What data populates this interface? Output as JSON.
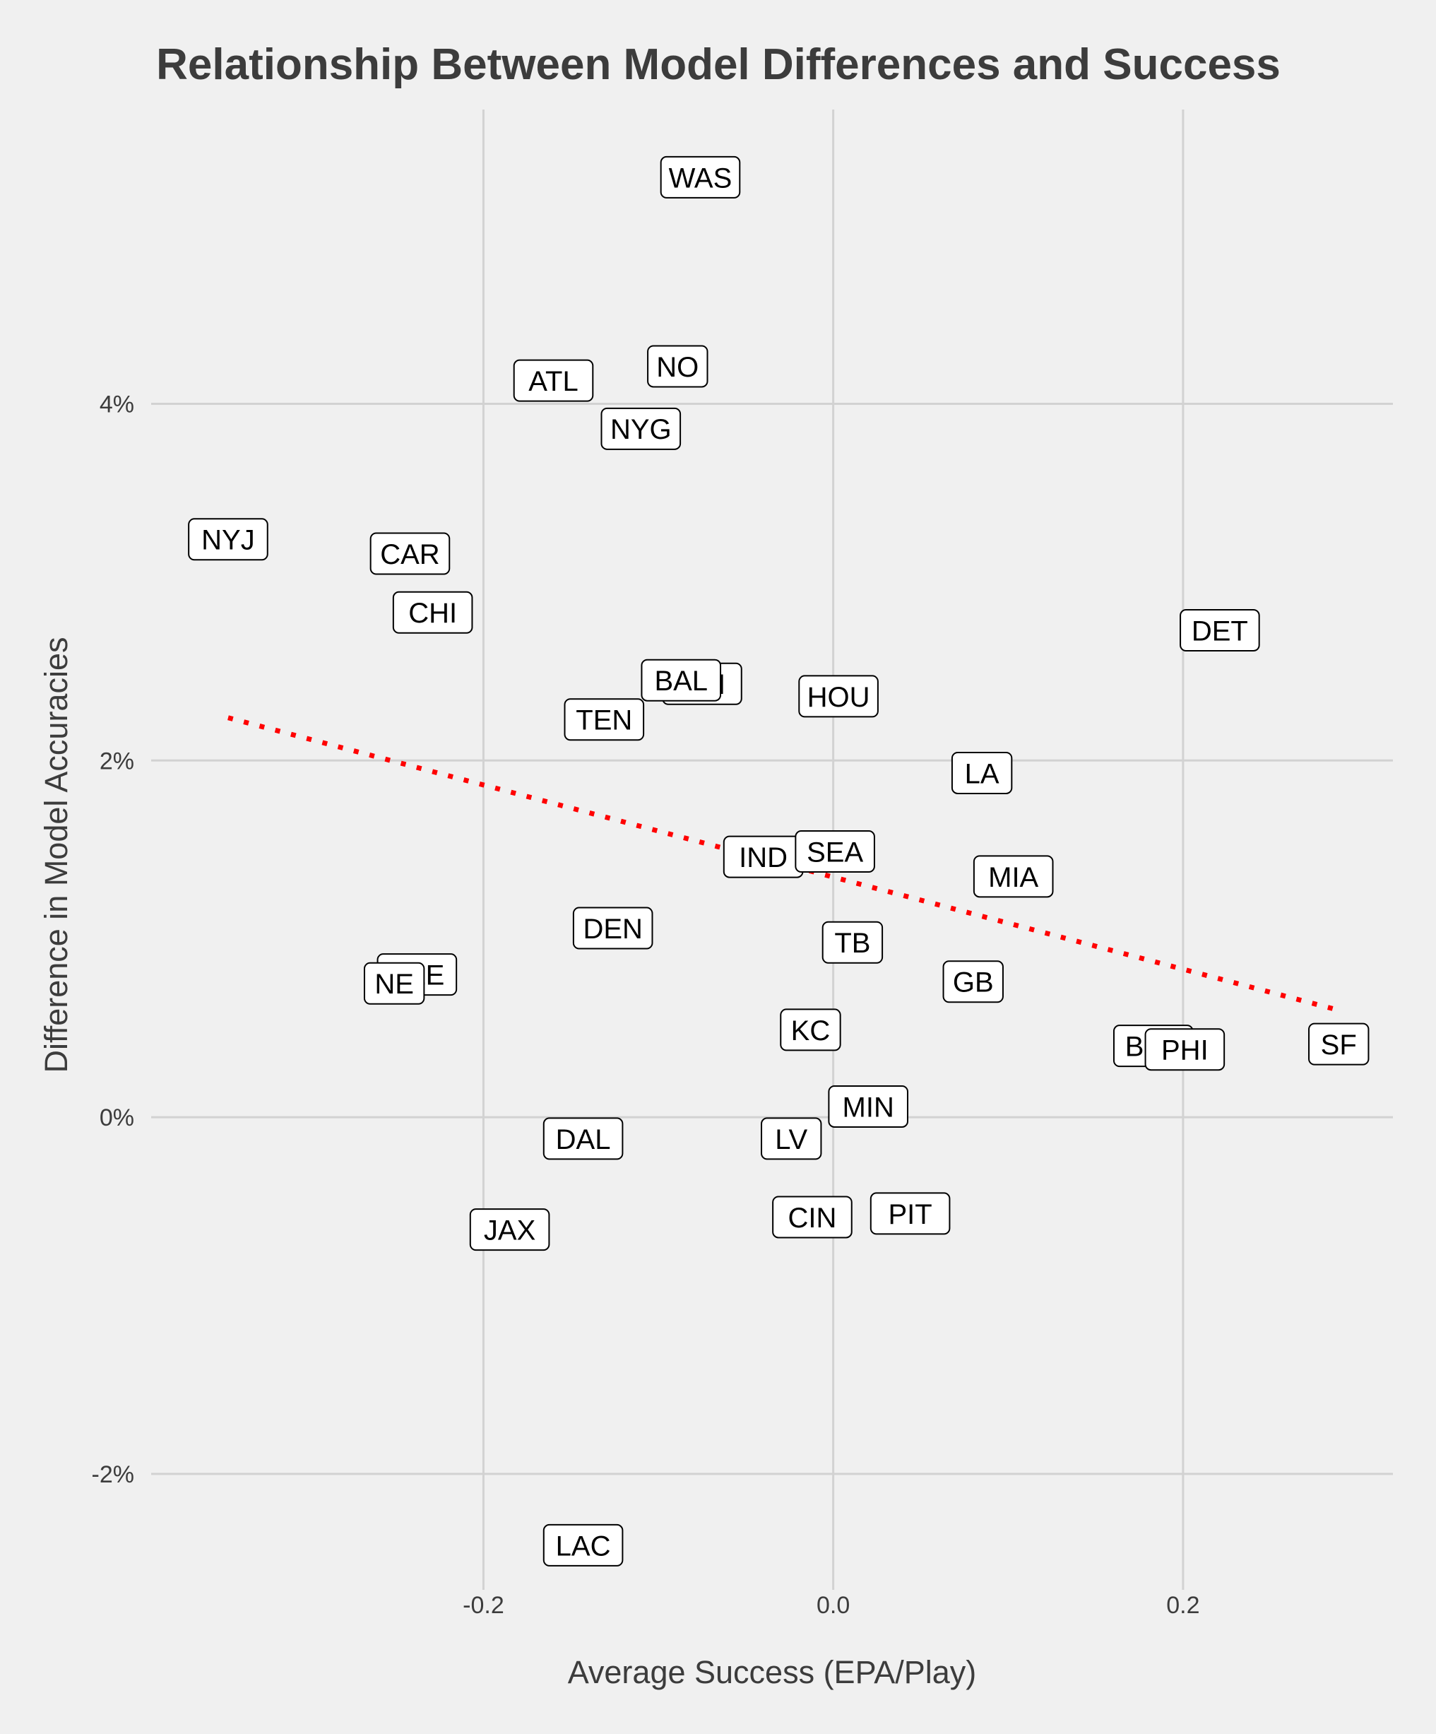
{
  "chart_data": {
    "type": "scatter",
    "title": "Relationship Between Model Differences and Success",
    "xlabel": "Average Success (EPA/Play)",
    "ylabel": "Difference in Model Accuracies",
    "xlim": [
      -0.39,
      0.32
    ],
    "ylim": [
      -2.65,
      5.65
    ],
    "x_ticks": [
      {
        "value": -0.2,
        "label": "-0.2"
      },
      {
        "value": 0.0,
        "label": "0.0"
      },
      {
        "value": 0.2,
        "label": "0.2"
      }
    ],
    "y_ticks": [
      {
        "value": -2,
        "label": "-2%"
      },
      {
        "value": 0,
        "label": "0%"
      },
      {
        "value": 2,
        "label": "2%"
      },
      {
        "value": 4,
        "label": "4%"
      }
    ],
    "y_unit": "%",
    "grid": true,
    "points": [
      {
        "team": "WAS",
        "x": -0.076,
        "y": 5.27
      },
      {
        "team": "NO",
        "x": -0.089,
        "y": 4.21
      },
      {
        "team": "ATL",
        "x": -0.16,
        "y": 4.13
      },
      {
        "team": "NYG",
        "x": -0.11,
        "y": 3.86
      },
      {
        "team": "NYJ",
        "x": -0.346,
        "y": 3.24
      },
      {
        "team": "CAR",
        "x": -0.242,
        "y": 3.16
      },
      {
        "team": "CHI",
        "x": -0.229,
        "y": 2.83
      },
      {
        "team": "DET",
        "x": 0.221,
        "y": 2.73
      },
      {
        "team": "ARI",
        "x": -0.075,
        "y": 2.43
      },
      {
        "team": "BAL",
        "x": -0.087,
        "y": 2.45
      },
      {
        "team": "HOU",
        "x": 0.003,
        "y": 2.36
      },
      {
        "team": "TEN",
        "x": -0.131,
        "y": 2.23
      },
      {
        "team": "LA",
        "x": 0.085,
        "y": 1.93
      },
      {
        "team": "IND",
        "x": -0.04,
        "y": 1.46
      },
      {
        "team": "SEA",
        "x": 0.001,
        "y": 1.49
      },
      {
        "team": "MIA",
        "x": 0.103,
        "y": 1.35
      },
      {
        "team": "DEN",
        "x": -0.126,
        "y": 1.06
      },
      {
        "team": "TB",
        "x": 0.011,
        "y": 0.98
      },
      {
        "team": "CLE",
        "x": -0.238,
        "y": 0.8
      },
      {
        "team": "NE",
        "x": -0.251,
        "y": 0.75
      },
      {
        "team": "GB",
        "x": 0.08,
        "y": 0.76
      },
      {
        "team": "KC",
        "x": -0.013,
        "y": 0.49
      },
      {
        "team": "BUF",
        "x": 0.183,
        "y": 0.4
      },
      {
        "team": "PHI",
        "x": 0.201,
        "y": 0.38
      },
      {
        "team": "SF",
        "x": 0.289,
        "y": 0.41
      },
      {
        "team": "MIN",
        "x": 0.02,
        "y": 0.06
      },
      {
        "team": "DAL",
        "x": -0.143,
        "y": -0.12
      },
      {
        "team": "LV",
        "x": -0.024,
        "y": -0.12
      },
      {
        "team": "CIN",
        "x": -0.012,
        "y": -0.56
      },
      {
        "team": "PIT",
        "x": 0.044,
        "y": -0.54
      },
      {
        "team": "JAX",
        "x": -0.185,
        "y": -0.63
      },
      {
        "team": "LAC",
        "x": -0.143,
        "y": -2.4
      }
    ],
    "trendline": {
      "style": "dotted",
      "color": "#ff0000",
      "x": [
        -0.346,
        0.289
      ],
      "y": [
        2.24,
        0.6
      ]
    }
  },
  "colors": {
    "background": "#f0f0f0",
    "grid": "#d2d2d2",
    "text": "#3c3c3c",
    "trend": "#ff0000",
    "label_fill": "#ffffff",
    "label_border": "#000000"
  }
}
